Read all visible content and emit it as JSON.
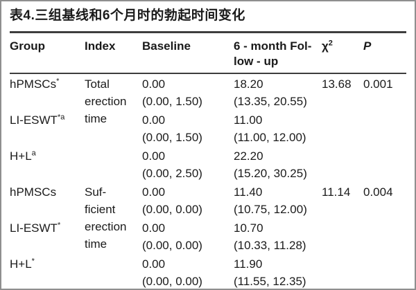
{
  "title": "表4.三组基线和6个月时的勃起时间变化",
  "table": {
    "headers": {
      "group": "Group",
      "index": "Index",
      "baseline": "Baseline",
      "followup": "6 - month Fol-\nlow - up",
      "chi": "χ",
      "chi_sup": "2",
      "p": "P"
    },
    "rows": [
      {
        "group": "hPMSCs",
        "group_sup": "*",
        "index": "Total\nerection\ntime",
        "baseline": "0.00\n(0.00, 1.50)",
        "followup": "18.20\n(13.35, 20.55)",
        "chi": "13.68",
        "p": "0.001"
      },
      {
        "group": "LI-ESWT",
        "group_sup": "*a",
        "baseline": "0.00\n(0.00, 1.50)",
        "followup": "11.00\n(11.00, 12.00)",
        "chi": "",
        "p": ""
      },
      {
        "group": "H+L",
        "group_sup": "a",
        "baseline": "0.00\n(0.00, 2.50)",
        "followup": "22.20\n(15.20, 30.25)",
        "chi": "",
        "p": ""
      },
      {
        "group": "hPMSCs",
        "group_sup": "",
        "index": "Suf-\nficient\nerection\ntime",
        "baseline": "0.00\n(0.00, 0.00)",
        "followup": "11.40\n(10.75, 12.00)",
        "chi": "11.14",
        "p": "0.004"
      },
      {
        "group": "LI-ESWT",
        "group_sup": "*",
        "baseline": "0.00\n(0.00, 0.00)",
        "followup": "10.70\n(10.33, 11.28)",
        "chi": "",
        "p": ""
      },
      {
        "group": "H+L",
        "group_sup": "*",
        "baseline": "0.00\n(0.00, 0.00)",
        "followup": "11.90\n(11.55, 12.35)",
        "chi": "",
        "p": ""
      }
    ]
  },
  "colors": {
    "text": "#1a1a1a",
    "rule": "#3d3d3d",
    "frame": "#8f8f8f",
    "background": "#ffffff"
  }
}
